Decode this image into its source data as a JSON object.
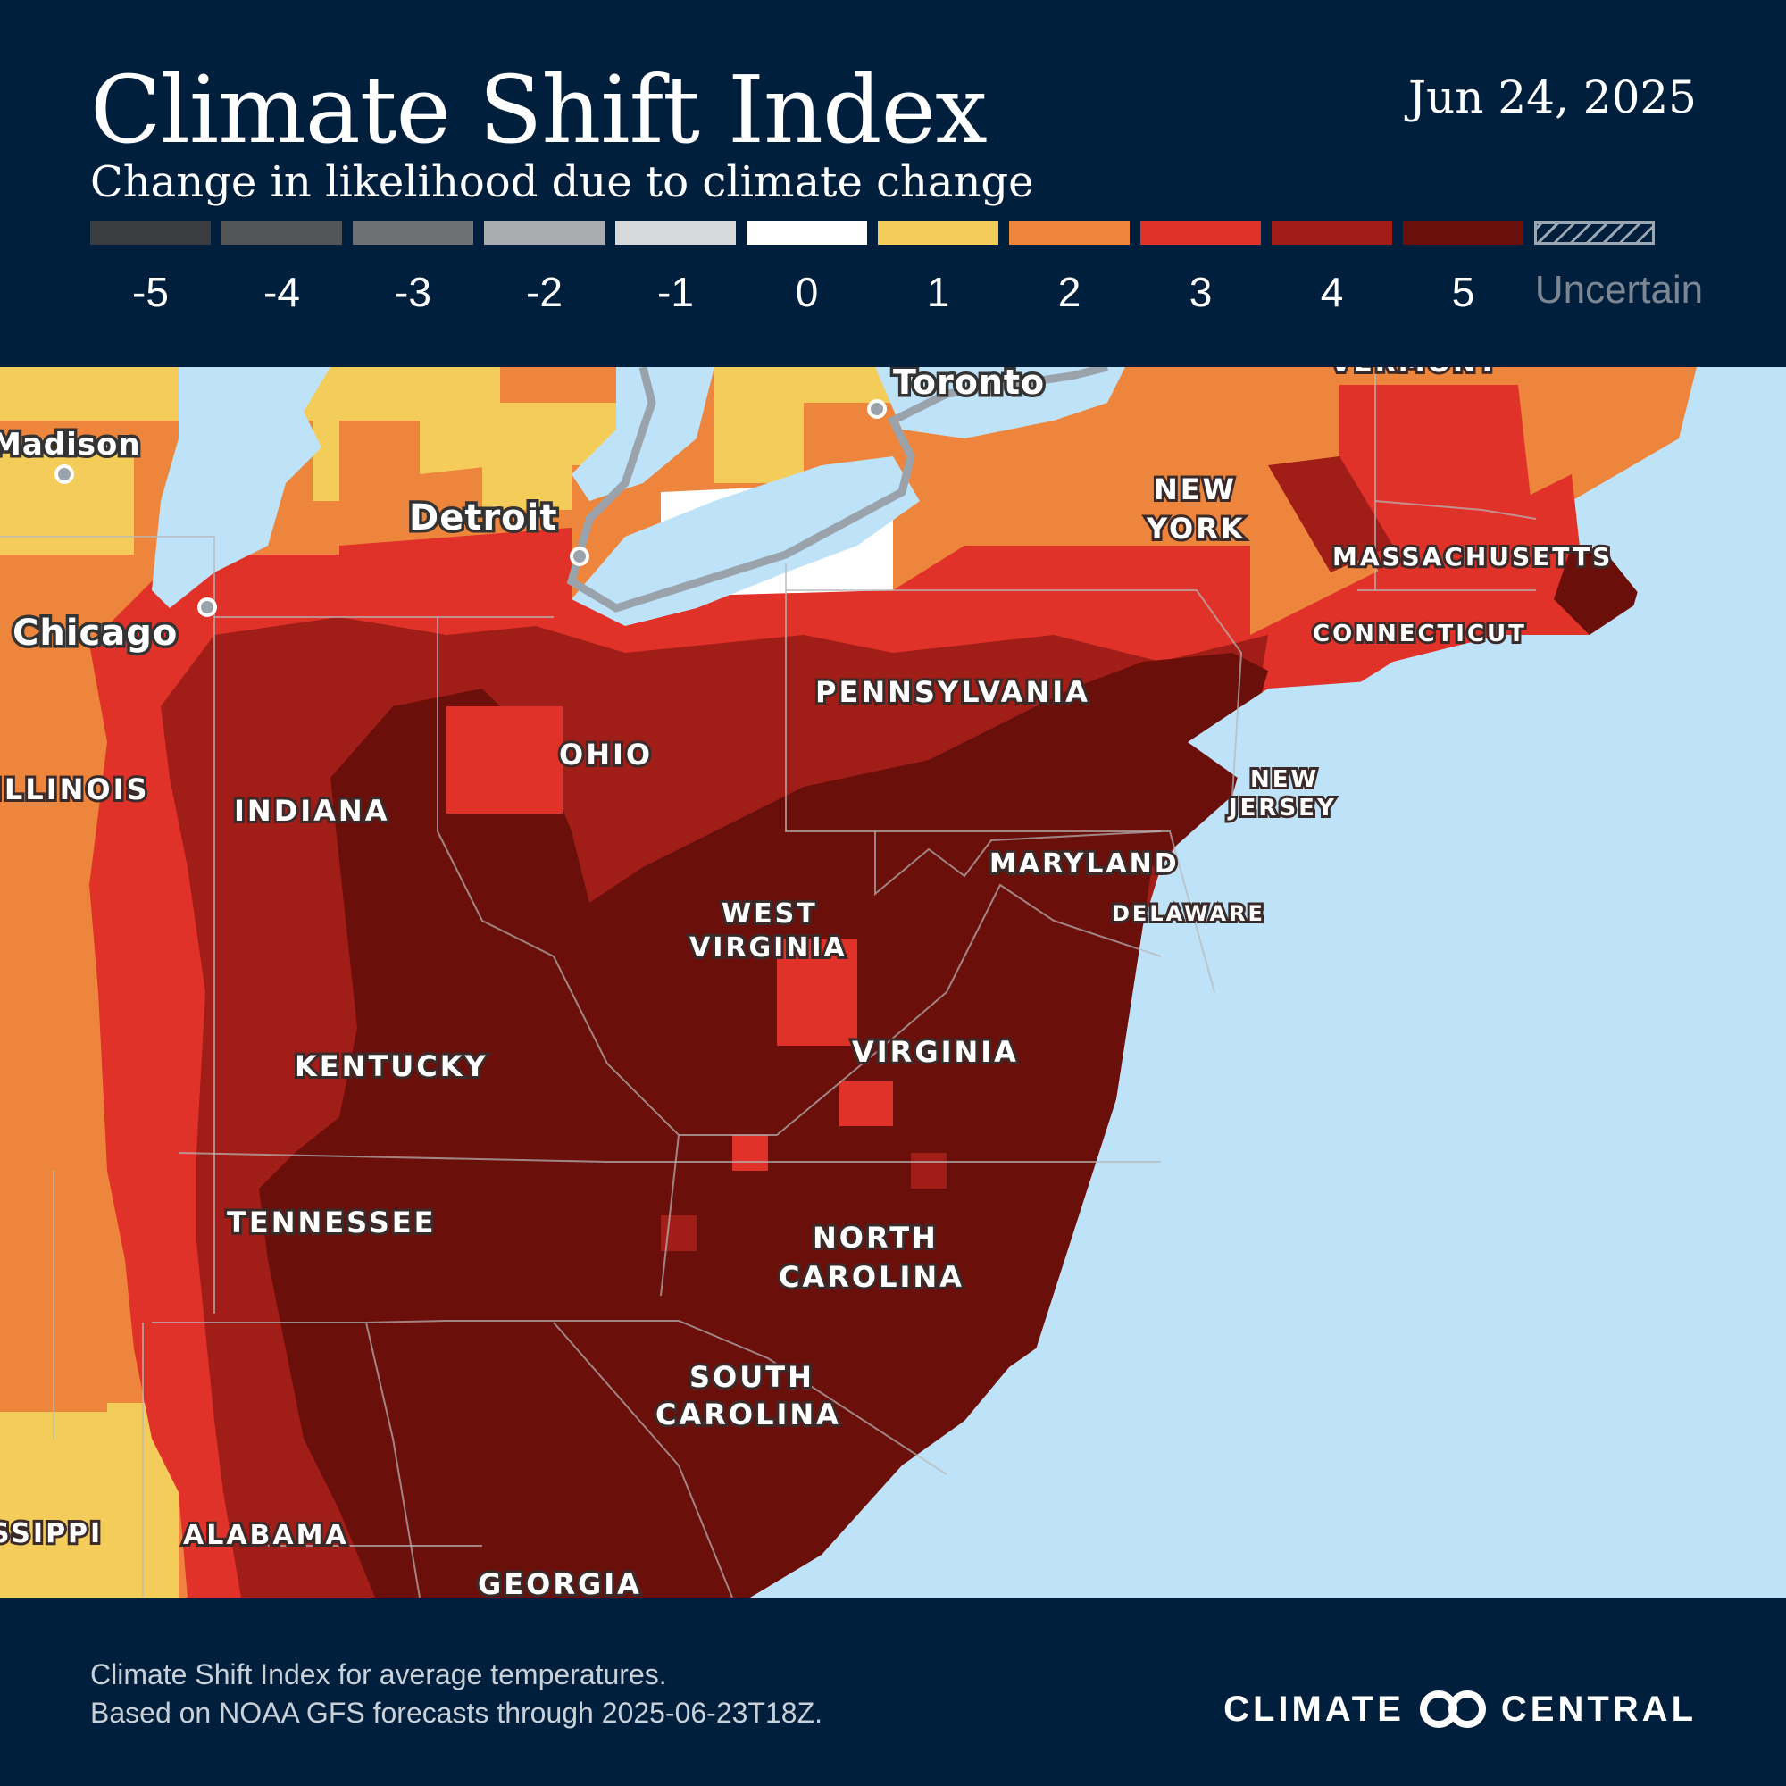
{
  "header": {
    "title": "Climate Shift Index",
    "date": "Jun 24, 2025",
    "subtitle": "Change in likelihood due to climate change"
  },
  "legend": [
    {
      "label": "-5",
      "color": "#3c3d40"
    },
    {
      "label": "-4",
      "color": "#545557"
    },
    {
      "label": "-3",
      "color": "#6e7072"
    },
    {
      "label": "-2",
      "color": "#a9abae"
    },
    {
      "label": "-1",
      "color": "#d7d8da"
    },
    {
      "label": "0",
      "color": "#ffffff"
    },
    {
      "label": "1",
      "color": "#f4cc5a"
    },
    {
      "label": "2",
      "color": "#ee853c"
    },
    {
      "label": "3",
      "color": "#e1322a"
    },
    {
      "label": "4",
      "color": "#a11d17"
    },
    {
      "label": "5",
      "color": "#6b0f0b"
    },
    {
      "label": "Uncertain",
      "color": "hatched"
    }
  ],
  "map": {
    "water_color": "#bee3f8",
    "cities": [
      "Toronto",
      "Madison",
      "Detroit",
      "Chicago"
    ],
    "states": [
      "VERMONT",
      "NEW",
      "YORK",
      "MASSACHUSETTS",
      "CONNECTICUT",
      "PENNSYLVANIA",
      "NEW",
      "JERSEY",
      "OHIO",
      "ILLINOIS",
      "INDIANA",
      "MARYLAND",
      "DELAWARE",
      "WEST",
      "VIRGINIA",
      "VIRGINIA",
      "KENTUCKY",
      "TENNESSEE",
      "NORTH",
      "CAROLINA",
      "SOUTH",
      "CAROLINA",
      "MISSISSIPPI",
      "ALABAMA",
      "GEORGIA"
    ]
  },
  "footer": {
    "line1": "Climate Shift Index for average temperatures.",
    "line2": "Based on NOAA GFS forecasts through 2025-06-23T18Z.",
    "brand_left": "CLIMATE",
    "brand_right": "CENTRAL"
  }
}
